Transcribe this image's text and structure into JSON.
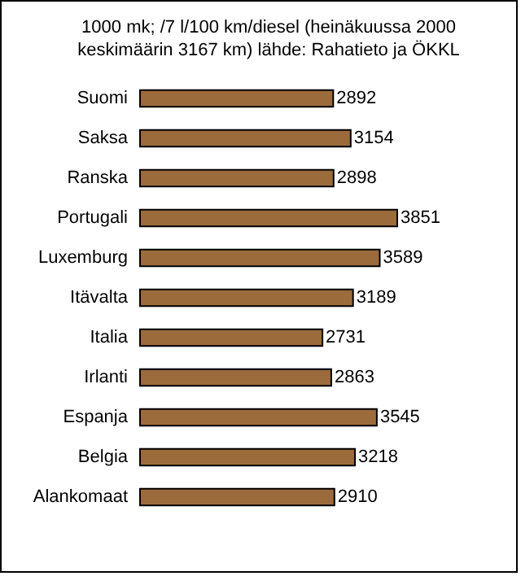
{
  "chart_data": {
    "type": "bar",
    "orientation": "horizontal",
    "title": "1000 mk; /7 l/100 km/diesel (heinäkuussa 2000 keskimäärin 3167 km) lähde: Rahatieto ja ÖKKL",
    "categories": [
      "Suomi",
      "Saksa",
      "Ranska",
      "Portugali",
      "Luxemburg",
      "Itävalta",
      "Italia",
      "Irlanti",
      "Espanja",
      "Belgia",
      "Alankomaat"
    ],
    "values": [
      2892,
      3154,
      2898,
      3851,
      3589,
      3189,
      2731,
      2863,
      3545,
      3218,
      2910
    ],
    "color": "#9c6b3c",
    "data_labels": true
  }
}
